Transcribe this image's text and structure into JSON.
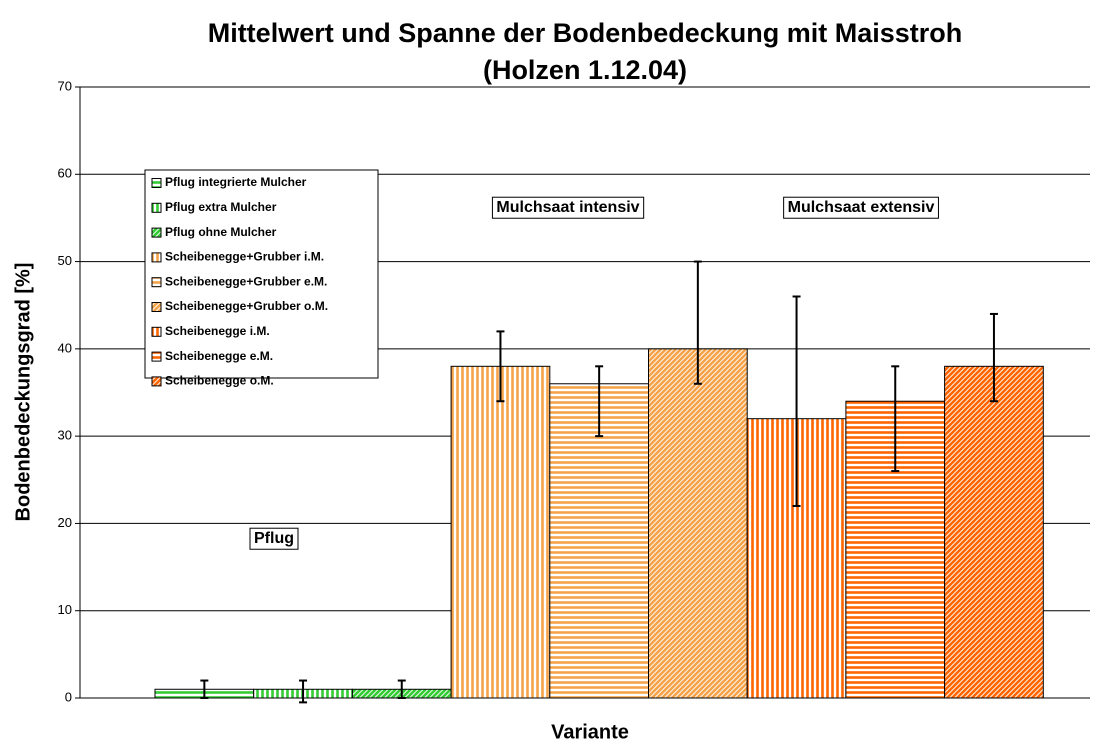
{
  "chart_data": {
    "type": "bar",
    "title": "Mittelwert und Spanne der Bodenbedeckung mit Maisstroh",
    "subtitle": "(Holzen 1.12.04)",
    "x_label": "Variante",
    "y_label": "Bodenbedeckungsgrad [%]",
    "ylim": [
      0,
      70
    ],
    "yticks": [
      0,
      10,
      20,
      30,
      40,
      50,
      60,
      70
    ],
    "grid": true,
    "legend": "upper left",
    "annotations": [
      "Pflug",
      "Mulchsaat intensiv",
      "Mulchsaat extensiv"
    ],
    "series": [
      {
        "name": "Pflug integrierte Mulcher",
        "color": "#33cc33",
        "hatch": "horizontal",
        "values": [
          1
        ],
        "min": [
          0
        ],
        "max": [
          2
        ]
      },
      {
        "name": "Pflug extra Mulcher",
        "color": "#33cc33",
        "hatch": "vertical",
        "values": [
          1
        ],
        "min": [
          -0.5
        ],
        "max": [
          2
        ]
      },
      {
        "name": "Pflug ohne Mulcher",
        "color": "#33cc33",
        "hatch": "diagonal",
        "values": [
          1
        ],
        "min": [
          0
        ],
        "max": [
          2
        ]
      },
      {
        "name": "Scheibenegge+Grubber i.M.",
        "color": "#f5a34a",
        "hatch": "vertical",
        "values": [
          38
        ],
        "min": [
          34
        ],
        "max": [
          42
        ]
      },
      {
        "name": "Scheibenegge+Grubber e.M.",
        "color": "#f5a34a",
        "hatch": "horizontal",
        "values": [
          36
        ],
        "min": [
          30
        ],
        "max": [
          38
        ]
      },
      {
        "name": "Scheibenegge+Grubber o.M.",
        "color": "#f5a34a",
        "hatch": "diagonal",
        "values": [
          40
        ],
        "min": [
          36
        ],
        "max": [
          50
        ]
      },
      {
        "name": "Scheibenegge i.M.",
        "color": "#ff6600",
        "hatch": "vertical",
        "values": [
          32
        ],
        "min": [
          22
        ],
        "max": [
          46
        ]
      },
      {
        "name": "Scheibenegge e.M.",
        "color": "#ff6600",
        "hatch": "horizontal",
        "values": [
          34
        ],
        "min": [
          26
        ],
        "max": [
          38
        ]
      },
      {
        "name": "Scheibenegge o.M.",
        "color": "#ff6600",
        "hatch": "diagonal",
        "values": [
          38
        ],
        "min": [
          34
        ],
        "max": [
          44
        ]
      }
    ]
  }
}
